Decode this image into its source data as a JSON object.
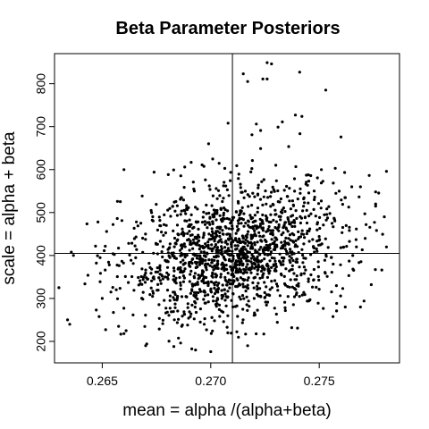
{
  "chart_data": {
    "type": "scatter",
    "title": "Beta Parameter Posteriors",
    "xlabel": "mean = alpha /(alpha+beta)",
    "ylabel": "scale = alpha + beta",
    "xlim": [
      0.2628,
      0.2787
    ],
    "ylim": [
      150,
      870
    ],
    "x_ticks": [
      0.265,
      0.27,
      0.275
    ],
    "x_tick_labels": [
      "0.265",
      "0.270",
      "0.275"
    ],
    "y_ticks": [
      200,
      300,
      400,
      500,
      600,
      700,
      800
    ],
    "y_tick_labels": [
      "200",
      "300",
      "400",
      "500",
      "600",
      "700",
      "800"
    ],
    "reference_lines": {
      "vertical_x": 0.271,
      "horizontal_y": 405
    },
    "grid": false,
    "legend": "none",
    "marker_color": "#000000",
    "n_points": 1600,
    "distribution_summary": {
      "x_mean": 0.2711,
      "x_sd": 0.0025,
      "y_center": 400,
      "y_sd": 75,
      "correlation": 0.25,
      "x_range": [
        0.263,
        0.2781
      ],
      "y_range": [
        170,
        850
      ]
    },
    "points": [
      [
        0.2726,
        849
      ],
      [
        0.2728,
        846
      ],
      [
        0.2741,
        827
      ],
      [
        0.2715,
        823
      ],
      [
        0.2724,
        811
      ],
      [
        0.2726,
        811
      ],
      [
        0.2717,
        805
      ],
      [
        0.2753,
        785
      ],
      [
        0.2739,
        727
      ],
      [
        0.2742,
        724
      ],
      [
        0.2733,
        711
      ],
      [
        0.2721,
        706
      ],
      [
        0.2708,
        708
      ],
      [
        0.2731,
        699
      ],
      [
        0.2723,
        691
      ],
      [
        0.2719,
        681
      ],
      [
        0.276,
        676
      ],
      [
        0.2699,
        660
      ],
      [
        0.2723,
        649
      ],
      [
        0.2691,
        617
      ],
      [
        0.266,
        600
      ],
      [
        0.2781,
        596
      ],
      [
        0.2751,
        600
      ],
      [
        0.273,
        610
      ],
      [
        0.2712,
        609
      ],
      [
        0.2696,
        611
      ],
      [
        0.2688,
        606
      ],
      [
        0.2769,
        560
      ],
      [
        0.2765,
        560
      ],
      [
        0.2776,
        548
      ],
      [
        0.2776,
        520
      ],
      [
        0.2657,
        526
      ],
      [
        0.2648,
        478
      ],
      [
        0.2776,
        515
      ],
      [
        0.2771,
        497
      ],
      [
        0.278,
        490
      ],
      [
        0.2652,
        456
      ],
      [
        0.2655,
        404
      ],
      [
        0.2649,
        395
      ],
      [
        0.2634,
        250
      ],
      [
        0.2635,
        240
      ],
      [
        0.263,
        325
      ],
      [
        0.2642,
        334
      ],
      [
        0.2649,
        339
      ],
      [
        0.265,
        300
      ],
      [
        0.2654,
        315
      ],
      [
        0.2661,
        225
      ],
      [
        0.266,
        218
      ],
      [
        0.267,
        190
      ],
      [
        0.2683,
        188
      ],
      [
        0.2693,
        180
      ],
      [
        0.27,
        176
      ],
      [
        0.2717,
        190
      ],
      [
        0.2697,
        240
      ],
      [
        0.274,
        231
      ],
      [
        0.2781,
        420
      ],
      [
        0.2774,
        332
      ],
      [
        0.2769,
        280
      ],
      [
        0.2762,
        280
      ],
      [
        0.2758,
        271
      ]
    ]
  }
}
